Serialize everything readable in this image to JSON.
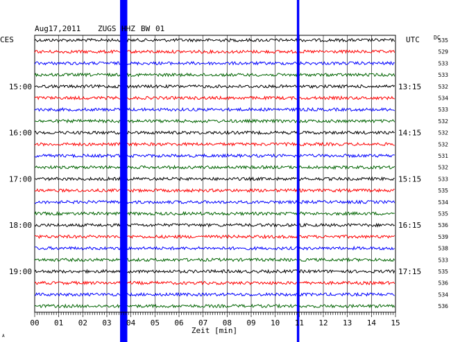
{
  "header": {
    "date": "Aug17,2011",
    "station": "ZUGS",
    "channel": "HHZ",
    "network": "BW",
    "location": "01",
    "left_zone": "CES",
    "right_zone": "UTC",
    "dc_label": "DC"
  },
  "chart_data": {
    "type": "line",
    "title": "",
    "xlabel": "Zeit [min]",
    "ylabel": "",
    "xlim": [
      0,
      15
    ],
    "x_ticks": [
      "00",
      "01",
      "02",
      "03",
      "04",
      "05",
      "06",
      "07",
      "08",
      "09",
      "10",
      "11",
      "12",
      "13",
      "14",
      "15"
    ],
    "grid": true,
    "trace_colors": [
      "#000000",
      "#ff0000",
      "#0000ff",
      "#006400"
    ],
    "trace_count": 24,
    "left_time_labels": [
      {
        "row": 4,
        "label": "15:00"
      },
      {
        "row": 8,
        "label": "16:00"
      },
      {
        "row": 12,
        "label": "17:00"
      },
      {
        "row": 16,
        "label": "18:00"
      },
      {
        "row": 20,
        "label": "19:00"
      }
    ],
    "right_time_labels": [
      {
        "row": 4,
        "label": "13:15"
      },
      {
        "row": 8,
        "label": "14:15"
      },
      {
        "row": 12,
        "label": "15:15"
      },
      {
        "row": 16,
        "label": "16:15"
      },
      {
        "row": 20,
        "label": "17:15"
      }
    ],
    "dc_values": [
      "535",
      "529",
      "533",
      "533",
      "532",
      "534",
      "533",
      "532",
      "532",
      "532",
      "531",
      "532",
      "533",
      "535",
      "534",
      "535",
      "536",
      "539",
      "538",
      "533",
      "535",
      "536",
      "534",
      "536"
    ],
    "highlight_bands": [
      {
        "x_start": 3.55,
        "x_end": 3.85,
        "color": "#0000ff"
      },
      {
        "x_start": 10.9,
        "x_end": 11.0,
        "color": "#0000ff"
      }
    ],
    "footer_mark": "A"
  }
}
